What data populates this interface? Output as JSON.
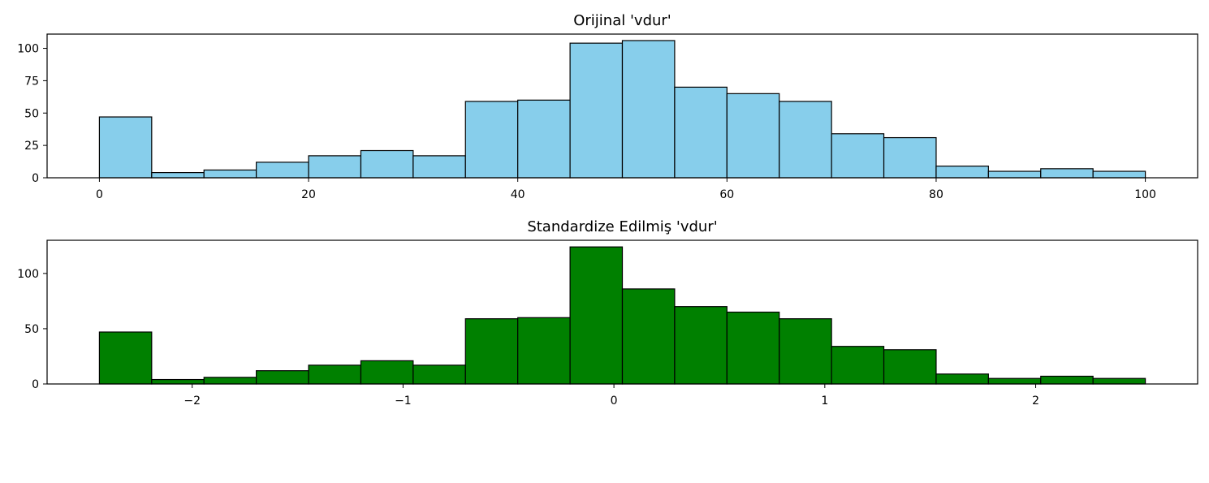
{
  "chart_data": [
    {
      "type": "bar",
      "title": "Orijinal 'vdur'",
      "xlabel": "",
      "ylabel": "",
      "bin_edges": [
        0,
        5,
        10,
        15,
        20,
        25,
        30,
        35,
        40,
        45,
        50,
        55,
        60,
        65,
        70,
        75,
        80,
        85,
        90,
        95,
        100
      ],
      "values": [
        47,
        4,
        6,
        12,
        17,
        21,
        17,
        59,
        60,
        104,
        106,
        70,
        65,
        59,
        34,
        31,
        9,
        5,
        7,
        5
      ],
      "xlim": [
        -5,
        105
      ],
      "ylim": [
        0,
        111
      ],
      "xticks": [
        0,
        20,
        40,
        60,
        80,
        100
      ],
      "xtick_labels": [
        "0",
        "20",
        "40",
        "60",
        "80",
        "100"
      ],
      "yticks": [
        0,
        25,
        50,
        75,
        100
      ],
      "ytick_labels": [
        "0",
        "25",
        "50",
        "75",
        "100"
      ],
      "bar_color": "#87ceeb",
      "edge_color": "#000000",
      "grid": false
    },
    {
      "type": "bar",
      "title": "Standardize Edilmiş 'vdur'",
      "xlabel": "",
      "ylabel": "",
      "bin_edges": [
        -2.44,
        -2.192,
        -1.944,
        -1.696,
        -1.448,
        -1.2,
        -0.952,
        -0.704,
        -0.456,
        -0.208,
        0.04,
        0.288,
        0.536,
        0.784,
        1.032,
        1.28,
        1.528,
        1.776,
        2.024,
        2.272,
        2.52
      ],
      "values": [
        47,
        4,
        6,
        12,
        17,
        21,
        17,
        59,
        60,
        124,
        86,
        70,
        65,
        59,
        34,
        31,
        9,
        5,
        7,
        5
      ],
      "xlim": [
        -2.688,
        2.768
      ],
      "ylim": [
        0,
        130
      ],
      "xticks": [
        -2,
        -1,
        0,
        1,
        2
      ],
      "xtick_labels": [
        "−2",
        "−1",
        "0",
        "1",
        "2"
      ],
      "yticks": [
        0,
        50,
        100
      ],
      "ytick_labels": [
        "0",
        "50",
        "100"
      ],
      "bar_color": "#008000",
      "edge_color": "#000000",
      "grid": false
    }
  ]
}
